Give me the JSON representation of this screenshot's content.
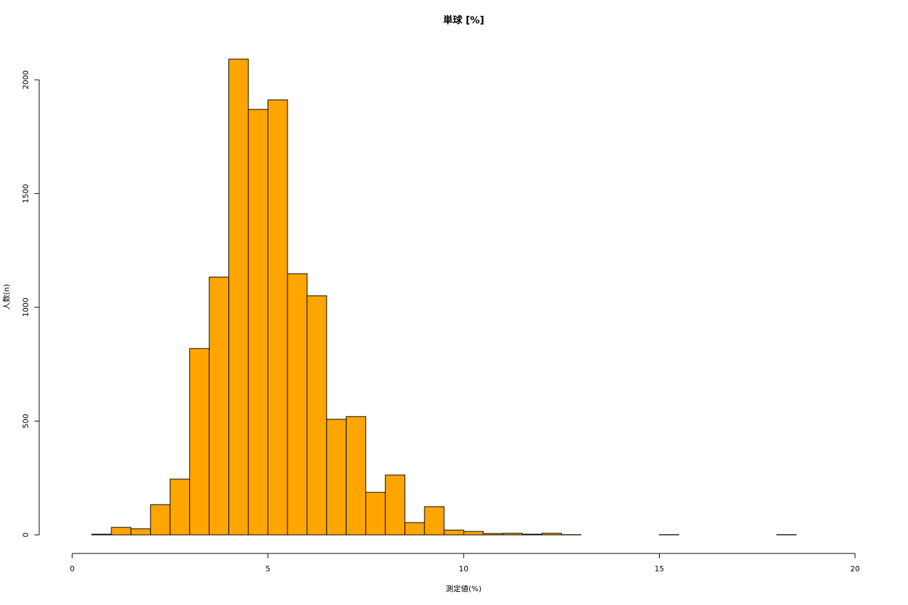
{
  "chart_data": {
    "type": "histogram",
    "title": "単球 [%]",
    "x_label": "測定値(%)",
    "y_label": "人数(n)",
    "bins": [
      0.5,
      1,
      1.5,
      2,
      2.5,
      3,
      3.5,
      4,
      4.5,
      5,
      5.5,
      6,
      6.5,
      7,
      7.5,
      8,
      8.5,
      9,
      9.5,
      10,
      10.5,
      11,
      11.5,
      12,
      12.5,
      13,
      13.5,
      14,
      14.5,
      15,
      15.5,
      16,
      16.5,
      17,
      17.5,
      18,
      18.5
    ],
    "counts": [
      3,
      33,
      27,
      133,
      245,
      819,
      1133,
      2091,
      1870,
      1912,
      1148,
      1051,
      508,
      520,
      187,
      263,
      54,
      124,
      21,
      15,
      6,
      7,
      3,
      7,
      1,
      0,
      0,
      0,
      0,
      1,
      0,
      0,
      0,
      0,
      0,
      1
    ],
    "color": "#ffa500",
    "xlim": [
      0,
      20
    ],
    "xticks": [
      0,
      5,
      10,
      15,
      20
    ],
    "ylim": [
      0,
      2091
    ],
    "yticks": [
      0,
      500,
      1000,
      1500,
      2000
    ]
  }
}
